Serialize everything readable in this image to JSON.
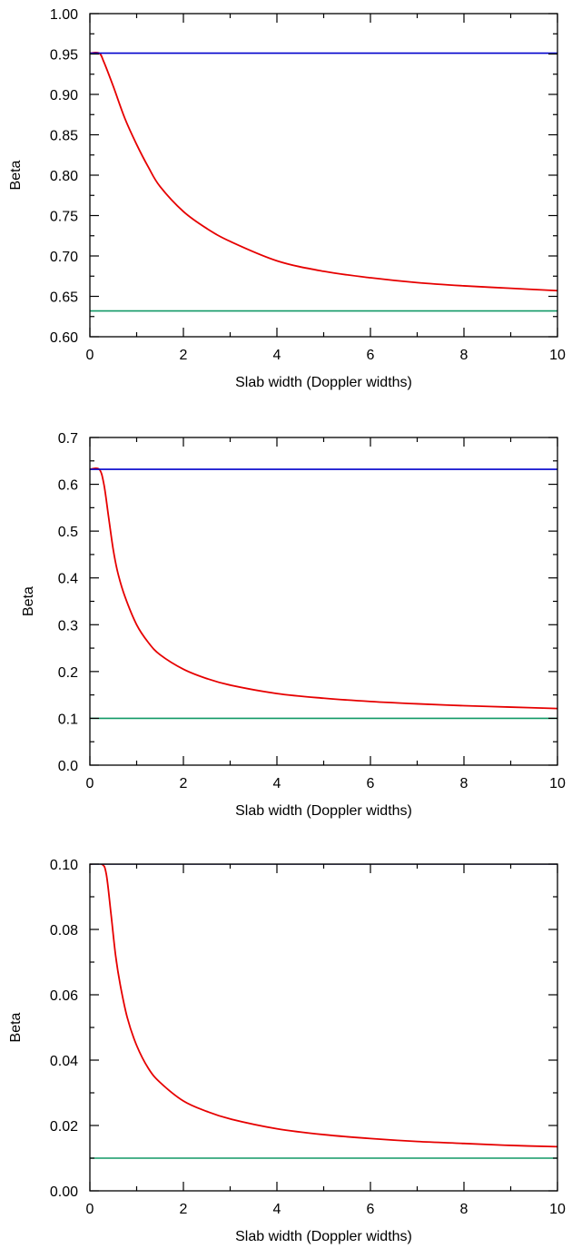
{
  "chart_data": [
    {
      "type": "line",
      "xlabel": "Slab width (Doppler widths)",
      "ylabel": "Beta",
      "xlim": [
        0,
        10
      ],
      "ylim": [
        0.6,
        1.0
      ],
      "x_ticks": [
        0,
        2,
        4,
        6,
        8,
        10
      ],
      "x_tick_labels": [
        "0",
        "2",
        "4",
        "6",
        "8",
        "10"
      ],
      "y_ticks": [
        0.6,
        0.65,
        0.7,
        0.75,
        0.8,
        0.85,
        0.9,
        0.95,
        1.0
      ],
      "y_tick_labels": [
        "0.60",
        "0.65",
        "0.70",
        "0.75",
        "0.80",
        "0.85",
        "0.90",
        "0.95",
        "1.00"
      ],
      "grid": false,
      "series": [
        {
          "color": "#e60000",
          "x": [
            0,
            0.2,
            0.3,
            0.5,
            0.75,
            1,
            1.25,
            1.5,
            2,
            2.5,
            3,
            4,
            5,
            6,
            7,
            8,
            9,
            10
          ],
          "y": [
            0.951,
            0.951,
            0.94,
            0.91,
            0.87,
            0.838,
            0.81,
            0.786,
            0.755,
            0.734,
            0.718,
            0.694,
            0.681,
            0.673,
            0.667,
            0.663,
            0.66,
            0.657
          ]
        },
        {
          "color": "#0000cc",
          "x": [
            0,
            10
          ],
          "y": [
            0.951,
            0.951
          ]
        },
        {
          "color": "#119966",
          "x": [
            0,
            10
          ],
          "y": [
            0.632,
            0.632
          ]
        }
      ]
    },
    {
      "type": "line",
      "xlabel": "Slab width (Doppler widths)",
      "ylabel": "Beta",
      "xlim": [
        0,
        10
      ],
      "ylim": [
        0.0,
        0.7
      ],
      "x_ticks": [
        0,
        2,
        4,
        6,
        8,
        10
      ],
      "x_tick_labels": [
        "0",
        "2",
        "4",
        "6",
        "8",
        "10"
      ],
      "y_ticks": [
        0.0,
        0.1,
        0.2,
        0.3,
        0.4,
        0.5,
        0.6,
        0.7
      ],
      "y_tick_labels": [
        "0.0",
        "0.1",
        "0.2",
        "0.3",
        "0.4",
        "0.5",
        "0.6",
        "0.7"
      ],
      "grid": false,
      "series": [
        {
          "color": "#e60000",
          "x": [
            0,
            0.2,
            0.3,
            0.4,
            0.5,
            0.6,
            0.75,
            1,
            1.25,
            1.5,
            2,
            2.5,
            3,
            4,
            5,
            6,
            7,
            8,
            9,
            10
          ],
          "y": [
            0.632,
            0.632,
            0.6,
            0.53,
            0.46,
            0.41,
            0.36,
            0.3,
            0.262,
            0.236,
            0.205,
            0.185,
            0.171,
            0.153,
            0.143,
            0.136,
            0.131,
            0.127,
            0.124,
            0.121
          ]
        },
        {
          "color": "#0000cc",
          "x": [
            0,
            10
          ],
          "y": [
            0.632,
            0.632
          ]
        },
        {
          "color": "#119966",
          "x": [
            0,
            10
          ],
          "y": [
            0.1,
            0.1
          ]
        }
      ]
    },
    {
      "type": "line",
      "xlabel": "Slab width (Doppler widths)",
      "ylabel": "Beta",
      "xlim": [
        0,
        10
      ],
      "ylim": [
        0.0,
        0.1
      ],
      "x_ticks": [
        0,
        2,
        4,
        6,
        8,
        10
      ],
      "x_tick_labels": [
        "0",
        "2",
        "4",
        "6",
        "8",
        "10"
      ],
      "y_ticks": [
        0.0,
        0.02,
        0.04,
        0.06,
        0.08,
        0.1
      ],
      "y_tick_labels": [
        "0.00",
        "0.02",
        "0.04",
        "0.06",
        "0.08",
        "0.10"
      ],
      "grid": false,
      "series": [
        {
          "color": "#e60000",
          "x": [
            0,
            0.25,
            0.35,
            0.45,
            0.55,
            0.65,
            0.8,
            1,
            1.25,
            1.5,
            2,
            2.5,
            3,
            4,
            5,
            6,
            7,
            8,
            9,
            10
          ],
          "y": [
            0.1,
            0.1,
            0.097,
            0.085,
            0.072,
            0.063,
            0.053,
            0.0445,
            0.0375,
            0.0332,
            0.0275,
            0.0243,
            0.022,
            0.019,
            0.0172,
            0.016,
            0.0151,
            0.0145,
            0.0139,
            0.0135
          ]
        },
        {
          "color": "#000066",
          "x": [
            0,
            10
          ],
          "y": [
            0.1,
            0.1
          ]
        },
        {
          "color": "#119966",
          "x": [
            0,
            10
          ],
          "y": [
            0.01,
            0.01
          ]
        }
      ]
    }
  ]
}
